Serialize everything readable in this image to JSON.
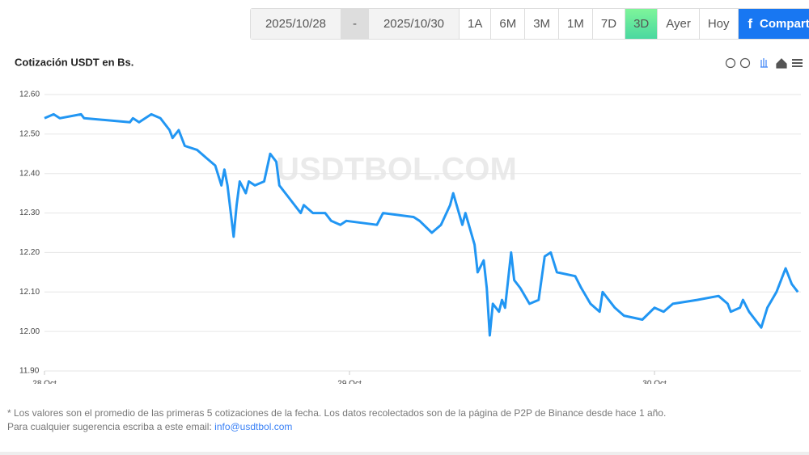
{
  "toolbar": {
    "date_from": "2025/10/28",
    "separator": "-",
    "date_to": "2025/10/30",
    "ranges": [
      "1A",
      "6M",
      "3M",
      "1M",
      "7D",
      "3D",
      "Ayer",
      "Hoy"
    ],
    "active_range": "3D",
    "share_icon": "f",
    "share": "Compartir"
  },
  "chart_data": {
    "type": "line",
    "title": "Cotización USDT en Bs.",
    "watermark": "USDTBOL.COM",
    "x": [
      0,
      0.03,
      0.05,
      0.12,
      0.13,
      0.28,
      0.29,
      0.31,
      0.35,
      0.38,
      0.41,
      0.42,
      0.44,
      0.46,
      0.5,
      0.53,
      0.56,
      0.58,
      0.59,
      0.6,
      0.62,
      0.63,
      0.64,
      0.66,
      0.67,
      0.69,
      0.72,
      0.74,
      0.76,
      0.77,
      0.8,
      0.84,
      0.85,
      0.88,
      0.92,
      0.94,
      0.97,
      0.99,
      1.09,
      1.11,
      1.21,
      1.23,
      1.27,
      1.3,
      1.33,
      1.34,
      1.37,
      1.38,
      1.41,
      1.42,
      1.44,
      1.45,
      1.46,
      1.47,
      1.49,
      1.5,
      1.51,
      1.53,
      1.54,
      1.56,
      1.59,
      1.62,
      1.64,
      1.66,
      1.68,
      1.74,
      1.76,
      1.79,
      1.82,
      1.83,
      1.87,
      1.9,
      1.96,
      2.0,
      2.03,
      2.06,
      2.14,
      2.21,
      2.24,
      2.25,
      2.28,
      2.29,
      2.31,
      2.33,
      2.35,
      2.37,
      2.4,
      2.43,
      2.45,
      2.47
    ],
    "series": [
      {
        "name": "USDT",
        "color": "#2196f3",
        "values": [
          12.54,
          12.55,
          12.54,
          12.55,
          12.54,
          12.53,
          12.54,
          12.53,
          12.55,
          12.54,
          12.51,
          12.49,
          12.51,
          12.47,
          12.46,
          12.44,
          12.42,
          12.37,
          12.41,
          12.37,
          12.24,
          12.32,
          12.38,
          12.35,
          12.38,
          12.37,
          12.38,
          12.45,
          12.43,
          12.37,
          12.34,
          12.3,
          12.32,
          12.3,
          12.3,
          12.28,
          12.27,
          12.28,
          12.27,
          12.3,
          12.29,
          12.28,
          12.25,
          12.27,
          12.32,
          12.35,
          12.27,
          12.3,
          12.22,
          12.15,
          12.18,
          12.11,
          11.99,
          12.07,
          12.05,
          12.08,
          12.06,
          12.2,
          12.13,
          12.11,
          12.07,
          12.08,
          12.19,
          12.2,
          12.15,
          12.14,
          12.11,
          12.07,
          12.05,
          12.1,
          12.06,
          12.04,
          12.03,
          12.06,
          12.05,
          12.07,
          12.08,
          12.09,
          12.07,
          12.05,
          12.06,
          12.08,
          12.05,
          12.03,
          12.01,
          12.06,
          12.1,
          12.16,
          12.12,
          12.1
        ]
      }
    ],
    "xlim": [
      0,
      2.48
    ],
    "xticks": [
      {
        "value": 0,
        "label": "28 Oct"
      },
      {
        "value": 1,
        "label": "29 Oct"
      },
      {
        "value": 2,
        "label": "30 Oct"
      }
    ],
    "ylim": [
      11.9,
      12.6
    ],
    "yticks": [
      {
        "value": 11.9,
        "label": "11.90"
      },
      {
        "value": 12,
        "label": "12.00"
      },
      {
        "value": 12.1,
        "label": "12.10"
      },
      {
        "value": 12.2,
        "label": "12.20"
      },
      {
        "value": 12.3,
        "label": "12.30"
      },
      {
        "value": 12.4,
        "label": "12.40"
      },
      {
        "value": 12.5,
        "label": "12.50"
      },
      {
        "value": 12.6,
        "label": "12.60"
      }
    ],
    "grid": true
  },
  "footnote": {
    "line1": "* Los valores son el promedio de las primeras 5 cotizaciones de la fecha. Los datos recolectados son de la página de P2P de Binance desde hace 1 año.",
    "line2": "Para cualquier sugerencia escriba a este email:",
    "email": "info@usdtbol.com"
  }
}
